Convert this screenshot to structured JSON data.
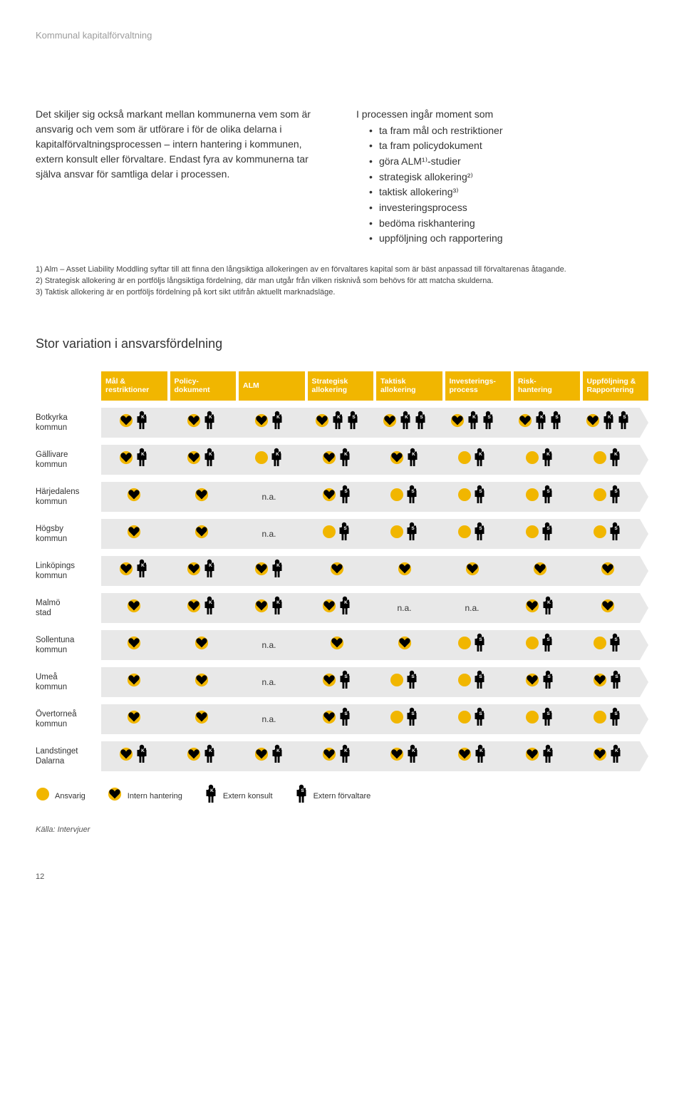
{
  "colors": {
    "accent": "#f1b600",
    "heart_fill": "#f1b600",
    "circle_fill": "#f1b600",
    "person_fill": "#000000",
    "badge_bg": "#000000",
    "badge_text": "#ffffff",
    "row_bg": "#e8e8e8",
    "text": "#333333",
    "header_text": "#9c9c9c"
  },
  "header": "Kommunal kapitalförvaltning",
  "left_paragraph": "Det skiljer sig också markant mellan kommunerna vem som är ansvarig och vem som är utförare i för de olika delarna i kapitalförvaltningsprocessen – intern hantering i kommunen, extern konsult eller förvaltare. Endast fyra av kommunerna tar själva ansvar för samtliga delar i processen.",
  "right_intro": "I processen ingår moment som",
  "bullets": [
    "ta fram mål och restriktioner",
    "ta fram policydokument",
    "göra ALM¹⁾-studier",
    "strategisk allokering²⁾",
    "taktisk allokering³⁾",
    "investeringsprocess",
    "bedöma riskhantering",
    "uppföljning och rapportering"
  ],
  "footnotes": [
    "1) Alm – Asset Liability Moddling syftar till att finna den långsiktiga allokeringen av en förvaltares kapital som är bäst anpassad till förvaltarenas åtagande.",
    "2) Strategisk allokering är en portföljs långsiktiga fördelning, där man utgår från vilken risknivå som behövs för att matcha skulderna.",
    "3) Taktisk allokering är en portföljs fördelning på kort sikt utifrån aktuellt marknadsläge."
  ],
  "chart": {
    "title": "Stor variation i ansvarsfördelning",
    "columns": [
      "Mål & restriktioner",
      "Policy-dokument",
      "ALM",
      "Strategisk allokering",
      "Taktisk allokering",
      "Investerings-process",
      "Risk-hantering",
      "Uppföljning & Rapportering"
    ],
    "na_label": "n.a.",
    "rows": [
      {
        "label": "Botkyrka kommun",
        "cells": [
          [
            "H",
            "K"
          ],
          [
            "H",
            "K"
          ],
          [
            "H",
            "K"
          ],
          [
            "H",
            "K",
            "S"
          ],
          [
            "H",
            "K",
            "S"
          ],
          [
            "H",
            "K",
            "S"
          ],
          [
            "H",
            "K",
            "S"
          ],
          [
            "H",
            "K",
            "S"
          ]
        ]
      },
      {
        "label": "Gällivare kommun",
        "cells": [
          [
            "H",
            "K"
          ],
          [
            "H",
            "K"
          ],
          [
            "K"
          ],
          [
            "H",
            "K"
          ],
          [
            "H",
            "K"
          ],
          [
            "K"
          ],
          [
            "K"
          ],
          [
            "K"
          ]
        ]
      },
      {
        "label": "Härjedalens kommun",
        "cells": [
          [
            "H"
          ],
          [
            "H"
          ],
          "na",
          [
            "H",
            "S"
          ],
          [
            "S"
          ],
          [
            "S"
          ],
          [
            "S"
          ],
          [
            "S"
          ]
        ]
      },
      {
        "label": "Högsby kommun",
        "cells": [
          [
            "H"
          ],
          [
            "H"
          ],
          "na",
          [
            "S"
          ],
          [
            "S"
          ],
          [
            "S"
          ],
          [
            "S"
          ],
          [
            "S"
          ]
        ]
      },
      {
        "label": "Linköpings kommun",
        "cells": [
          [
            "H",
            "K"
          ],
          [
            "H",
            "K"
          ],
          [
            "H",
            "K"
          ],
          [
            "H"
          ],
          [
            "H"
          ],
          [
            "H"
          ],
          [
            "H"
          ],
          [
            "H"
          ]
        ]
      },
      {
        "label": "Malmö stad",
        "cells": [
          [
            "H"
          ],
          [
            "H",
            "K"
          ],
          [
            "H",
            "K"
          ],
          [
            "H",
            "K"
          ],
          "na",
          "na",
          [
            "H",
            "K"
          ],
          [
            "H"
          ]
        ]
      },
      {
        "label": "Sollentuna kommun",
        "cells": [
          [
            "H"
          ],
          [
            "H"
          ],
          "na",
          [
            "H"
          ],
          [
            "H"
          ],
          [
            "S"
          ],
          [
            "S"
          ],
          [
            "S"
          ]
        ]
      },
      {
        "label": "Umeå kommun",
        "cells": [
          [
            "H"
          ],
          [
            "H"
          ],
          "na",
          [
            "H",
            "S"
          ],
          [
            "S"
          ],
          [
            "S"
          ],
          [
            "H",
            "S"
          ],
          [
            "H",
            "S"
          ]
        ]
      },
      {
        "label": "Övertorneå kommun",
        "cells": [
          [
            "H"
          ],
          [
            "H"
          ],
          "na",
          [
            "H",
            "S"
          ],
          [
            "S"
          ],
          [
            "S"
          ],
          [
            "S"
          ],
          [
            "S"
          ]
        ]
      },
      {
        "label": "Landstinget Dalarna",
        "cells": [
          [
            "H",
            "K"
          ],
          [
            "H",
            "K"
          ],
          [
            "H",
            "K"
          ],
          [
            "H",
            "K"
          ],
          [
            "H",
            "K"
          ],
          [
            "H",
            "K"
          ],
          [
            "H",
            "K"
          ],
          [
            "H",
            "K"
          ]
        ]
      }
    ],
    "legend": [
      {
        "icon": "circle",
        "label": "Ansvarig"
      },
      {
        "icon": "heart",
        "label": "Intern hantering"
      },
      {
        "icon": "person-k",
        "label": "Extern konsult"
      },
      {
        "icon": "person-s",
        "label": "Extern förvaltare"
      }
    ],
    "source": "Källa: Intervjuer"
  },
  "page_number": "12"
}
